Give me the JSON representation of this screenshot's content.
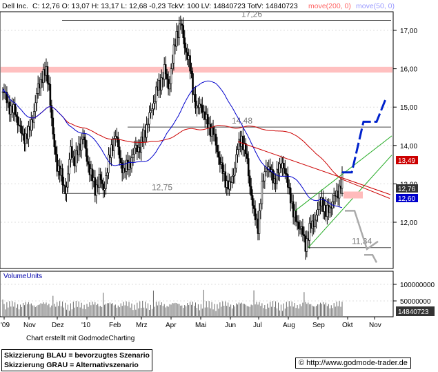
{
  "header": {
    "ticker": "Dell Inc.",
    "stats": "C: 12,76 O: 13,07 H: 13,17 L: 12,68 -0,23 TckV: 100 LV: 14840723 TotV: 14840723",
    "ma200": "move(200, 0)",
    "ma50": "move(50, 0)",
    "ma200_color": "#ff6666",
    "ma50_color": "#9999ff"
  },
  "chart_data": {
    "type": "candlestick",
    "y_axis": {
      "min": 11.1,
      "max": 17.3,
      "ticks": [
        "17,00",
        "16,00",
        "15,00",
        "14,00",
        "13,00",
        "12,00"
      ]
    },
    "x_labels": [
      "'09",
      "Nov",
      "Dez",
      "'10",
      "Feb",
      "Mrz",
      "Apr",
      "Mai",
      "Jun",
      "Jul",
      "Aug",
      "Sep",
      "Okt",
      "Nov"
    ],
    "levels": [
      {
        "value": 17.26,
        "label": "17,26"
      },
      {
        "value": 14.48,
        "label": "14,48"
      },
      {
        "value": 12.75,
        "label": "12,75"
      },
      {
        "value": 11.34,
        "label": "11,34"
      }
    ],
    "resistance_zone": [
      15.9,
      16.05
    ],
    "price_badges": [
      {
        "label": "13,49",
        "value": 13.49,
        "color": "#cc0000"
      },
      {
        "label": "12,76",
        "value": 12.76,
        "color": "#333333"
      },
      {
        "label": "12,60",
        "value": 12.6,
        "color": "#0000cc"
      }
    ],
    "volume": {
      "title": "VolumeUnits",
      "ticks": [
        "100000000",
        "50000000"
      ],
      "current": "14840723"
    },
    "scenario_blue": [
      [
        13.3,
        13.3
      ],
      [
        14.6,
        14.6
      ],
      [
        15.25
      ]
    ],
    "scenario_gray": [
      [
        12.3,
        12.3
      ],
      [
        11.2,
        11.2
      ]
    ]
  },
  "credit": "Chart erstellt mit GodmodeCharting",
  "legend": {
    "blue": "Skizzierung BLAU = bevorzugtes Szenario",
    "gray": "Skizzierung GRAU = Alternativszenario"
  },
  "footer": {
    "copyright": "©",
    "url": "http://www.godmode-trader.de"
  }
}
